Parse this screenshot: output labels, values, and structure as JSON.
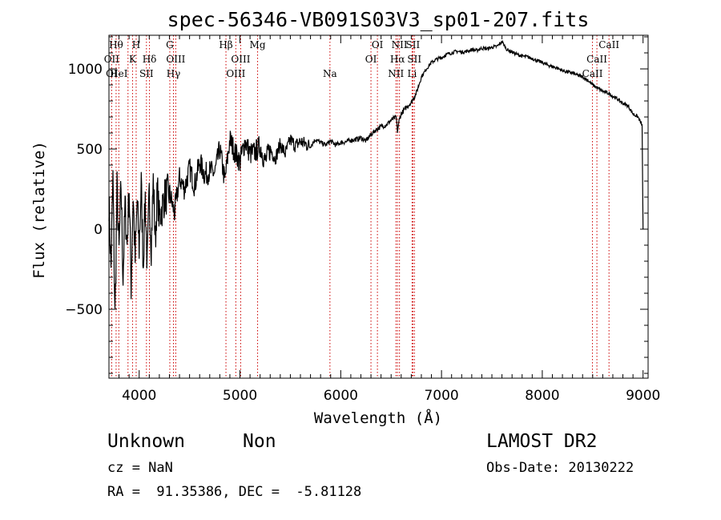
{
  "chart_data": {
    "type": "line",
    "title": "spec-56346-VB091S03V3_sp01-207.fits",
    "xlabel": "Wavelength (Å)",
    "ylabel": "Flux (relative)",
    "xlim": [
      3700,
      9050
    ],
    "ylim": [
      -930,
      1210
    ],
    "xticks": [
      4000,
      5000,
      6000,
      7000,
      8000,
      9000
    ],
    "yticks": [
      -500,
      0,
      500,
      1000
    ],
    "line_color": "#000000",
    "marker_color": "#cc0000",
    "series": [
      {
        "x": [
          3700,
          3720,
          3740,
          3760,
          3780,
          3800,
          3820,
          3840,
          3860,
          3880,
          3900,
          3920,
          3940,
          3960,
          3980,
          4000,
          4020,
          4040,
          4060,
          4080,
          4100,
          4120,
          4140,
          4160,
          4180,
          4200,
          4250,
          4300,
          4350,
          4400,
          4450,
          4500,
          4550,
          4600,
          4650,
          4700,
          4750,
          4800,
          4850,
          4900,
          4950,
          5000,
          5050,
          5100,
          5150,
          5200,
          5250,
          5300,
          5350,
          5400,
          5450,
          5500,
          5550,
          5600,
          5650,
          5700,
          5750,
          5800,
          5850,
          5900,
          5950,
          6000,
          6050,
          6100,
          6150,
          6200,
          6250,
          6300,
          6350,
          6400,
          6450,
          6500,
          6550,
          6563,
          6580,
          6600,
          6650,
          6700,
          6750,
          6800,
          6850,
          6900,
          6950,
          7000,
          7050,
          7100,
          7150,
          7200,
          7250,
          7300,
          7350,
          7400,
          7450,
          7500,
          7550,
          7600,
          7650,
          7700,
          7750,
          7800,
          7850,
          7900,
          7950,
          8000,
          8050,
          8100,
          8150,
          8200,
          8250,
          8300,
          8350,
          8400,
          8450,
          8500,
          8550,
          8600,
          8650,
          8700,
          8750,
          8800,
          8850,
          8900,
          8950,
          8990,
          9000
        ],
        "y": [
          180,
          -250,
          320,
          -550,
          250,
          -150,
          280,
          -300,
          150,
          -100,
          260,
          -350,
          220,
          -200,
          180,
          -120,
          280,
          -220,
          200,
          -240,
          220,
          -100,
          300,
          -80,
          250,
          60,
          200,
          230,
          100,
          320,
          250,
          380,
          270,
          420,
          340,
          360,
          350,
          500,
          300,
          560,
          480,
          420,
          550,
          470,
          480,
          520,
          420,
          500,
          440,
          530,
          470,
          560,
          520,
          550,
          530,
          520,
          560,
          540,
          525,
          550,
          525,
          540,
          545,
          555,
          560,
          570,
          550,
          590,
          620,
          640,
          650,
          680,
          700,
          610,
          680,
          720,
          760,
          790,
          850,
          950,
          1000,
          1040,
          1060,
          1070,
          1090,
          1100,
          1110,
          1105,
          1110,
          1120,
          1115,
          1130,
          1125,
          1135,
          1140,
          1170,
          1120,
          1105,
          1090,
          1080,
          1075,
          1065,
          1050,
          1040,
          1025,
          1015,
          1005,
          990,
          980,
          975,
          960,
          950,
          930,
          900,
          880,
          860,
          850,
          830,
          810,
          785,
          770,
          720,
          700,
          650,
          0
        ]
      }
    ],
    "lines": [
      {
        "w": 3727,
        "labels": [
          {
            "t": "OII",
            "r": 2
          },
          {
            "t": "OI",
            "r": 3
          }
        ]
      },
      {
        "w": 3771,
        "labels": [
          {
            "t": "Hθ",
            "r": 1
          }
        ]
      },
      {
        "w": 3798,
        "labels": [
          {
            "t": "HeI",
            "r": 3
          }
        ]
      },
      {
        "w": 3889,
        "labels": []
      },
      {
        "w": 3934,
        "labels": [
          {
            "t": "K",
            "r": 2
          }
        ]
      },
      {
        "w": 3970,
        "labels": [
          {
            "t": "H",
            "r": 1
          }
        ]
      },
      {
        "w": 4072,
        "labels": [
          {
            "t": "SII",
            "r": 3
          }
        ]
      },
      {
        "w": 4102,
        "labels": [
          {
            "t": "Hδ",
            "r": 2
          }
        ]
      },
      {
        "w": 4304,
        "labels": [
          {
            "t": "G",
            "r": 1
          }
        ]
      },
      {
        "w": 4340,
        "labels": [
          {
            "t": "Hγ",
            "r": 3
          }
        ]
      },
      {
        "w": 4363,
        "labels": [
          {
            "t": "OIII",
            "r": 2
          }
        ]
      },
      {
        "w": 4861,
        "labels": [
          {
            "t": "Hβ",
            "r": 1
          }
        ]
      },
      {
        "w": 4959,
        "labels": [
          {
            "t": "OIII",
            "r": 3
          }
        ]
      },
      {
        "w": 5007,
        "labels": [
          {
            "t": "OIII",
            "r": 2
          }
        ]
      },
      {
        "w": 5175,
        "labels": [
          {
            "t": "Mg",
            "r": 1
          }
        ]
      },
      {
        "w": 5893,
        "labels": [
          {
            "t": "Na",
            "r": 3
          }
        ]
      },
      {
        "w": 6300,
        "labels": [
          {
            "t": "OI",
            "r": 2
          }
        ]
      },
      {
        "w": 6364,
        "labels": [
          {
            "t": "OI",
            "r": 1
          }
        ]
      },
      {
        "w": 6548,
        "labels": [
          {
            "t": "NII",
            "r": 3
          }
        ]
      },
      {
        "w": 6563,
        "labels": [
          {
            "t": "Hα",
            "r": 2
          }
        ]
      },
      {
        "w": 6583,
        "labels": [
          {
            "t": "NII",
            "r": 1
          }
        ]
      },
      {
        "w": 6708,
        "labels": [
          {
            "t": "Li",
            "r": 3
          }
        ]
      },
      {
        "w": 6716,
        "labels": [
          {
            "t": "SII",
            "r": 1
          }
        ]
      },
      {
        "w": 6731,
        "labels": [
          {
            "t": "SII",
            "r": 2
          }
        ]
      },
      {
        "w": 8498,
        "labels": [
          {
            "t": "CaII",
            "r": 3
          }
        ]
      },
      {
        "w": 8542,
        "labels": [
          {
            "t": "CaII",
            "r": 2
          }
        ]
      },
      {
        "w": 8662,
        "labels": [
          {
            "t": "CaII",
            "r": 1
          }
        ]
      }
    ]
  },
  "info": {
    "class_label": "Unknown",
    "subclass_label": "Non",
    "survey_label": "LAMOST DR2",
    "cz_line": "cz = NaN",
    "obs_date_line": "Obs-Date: 20130222",
    "coord_line": "RA =  91.35386, DEC =  -5.81128"
  }
}
